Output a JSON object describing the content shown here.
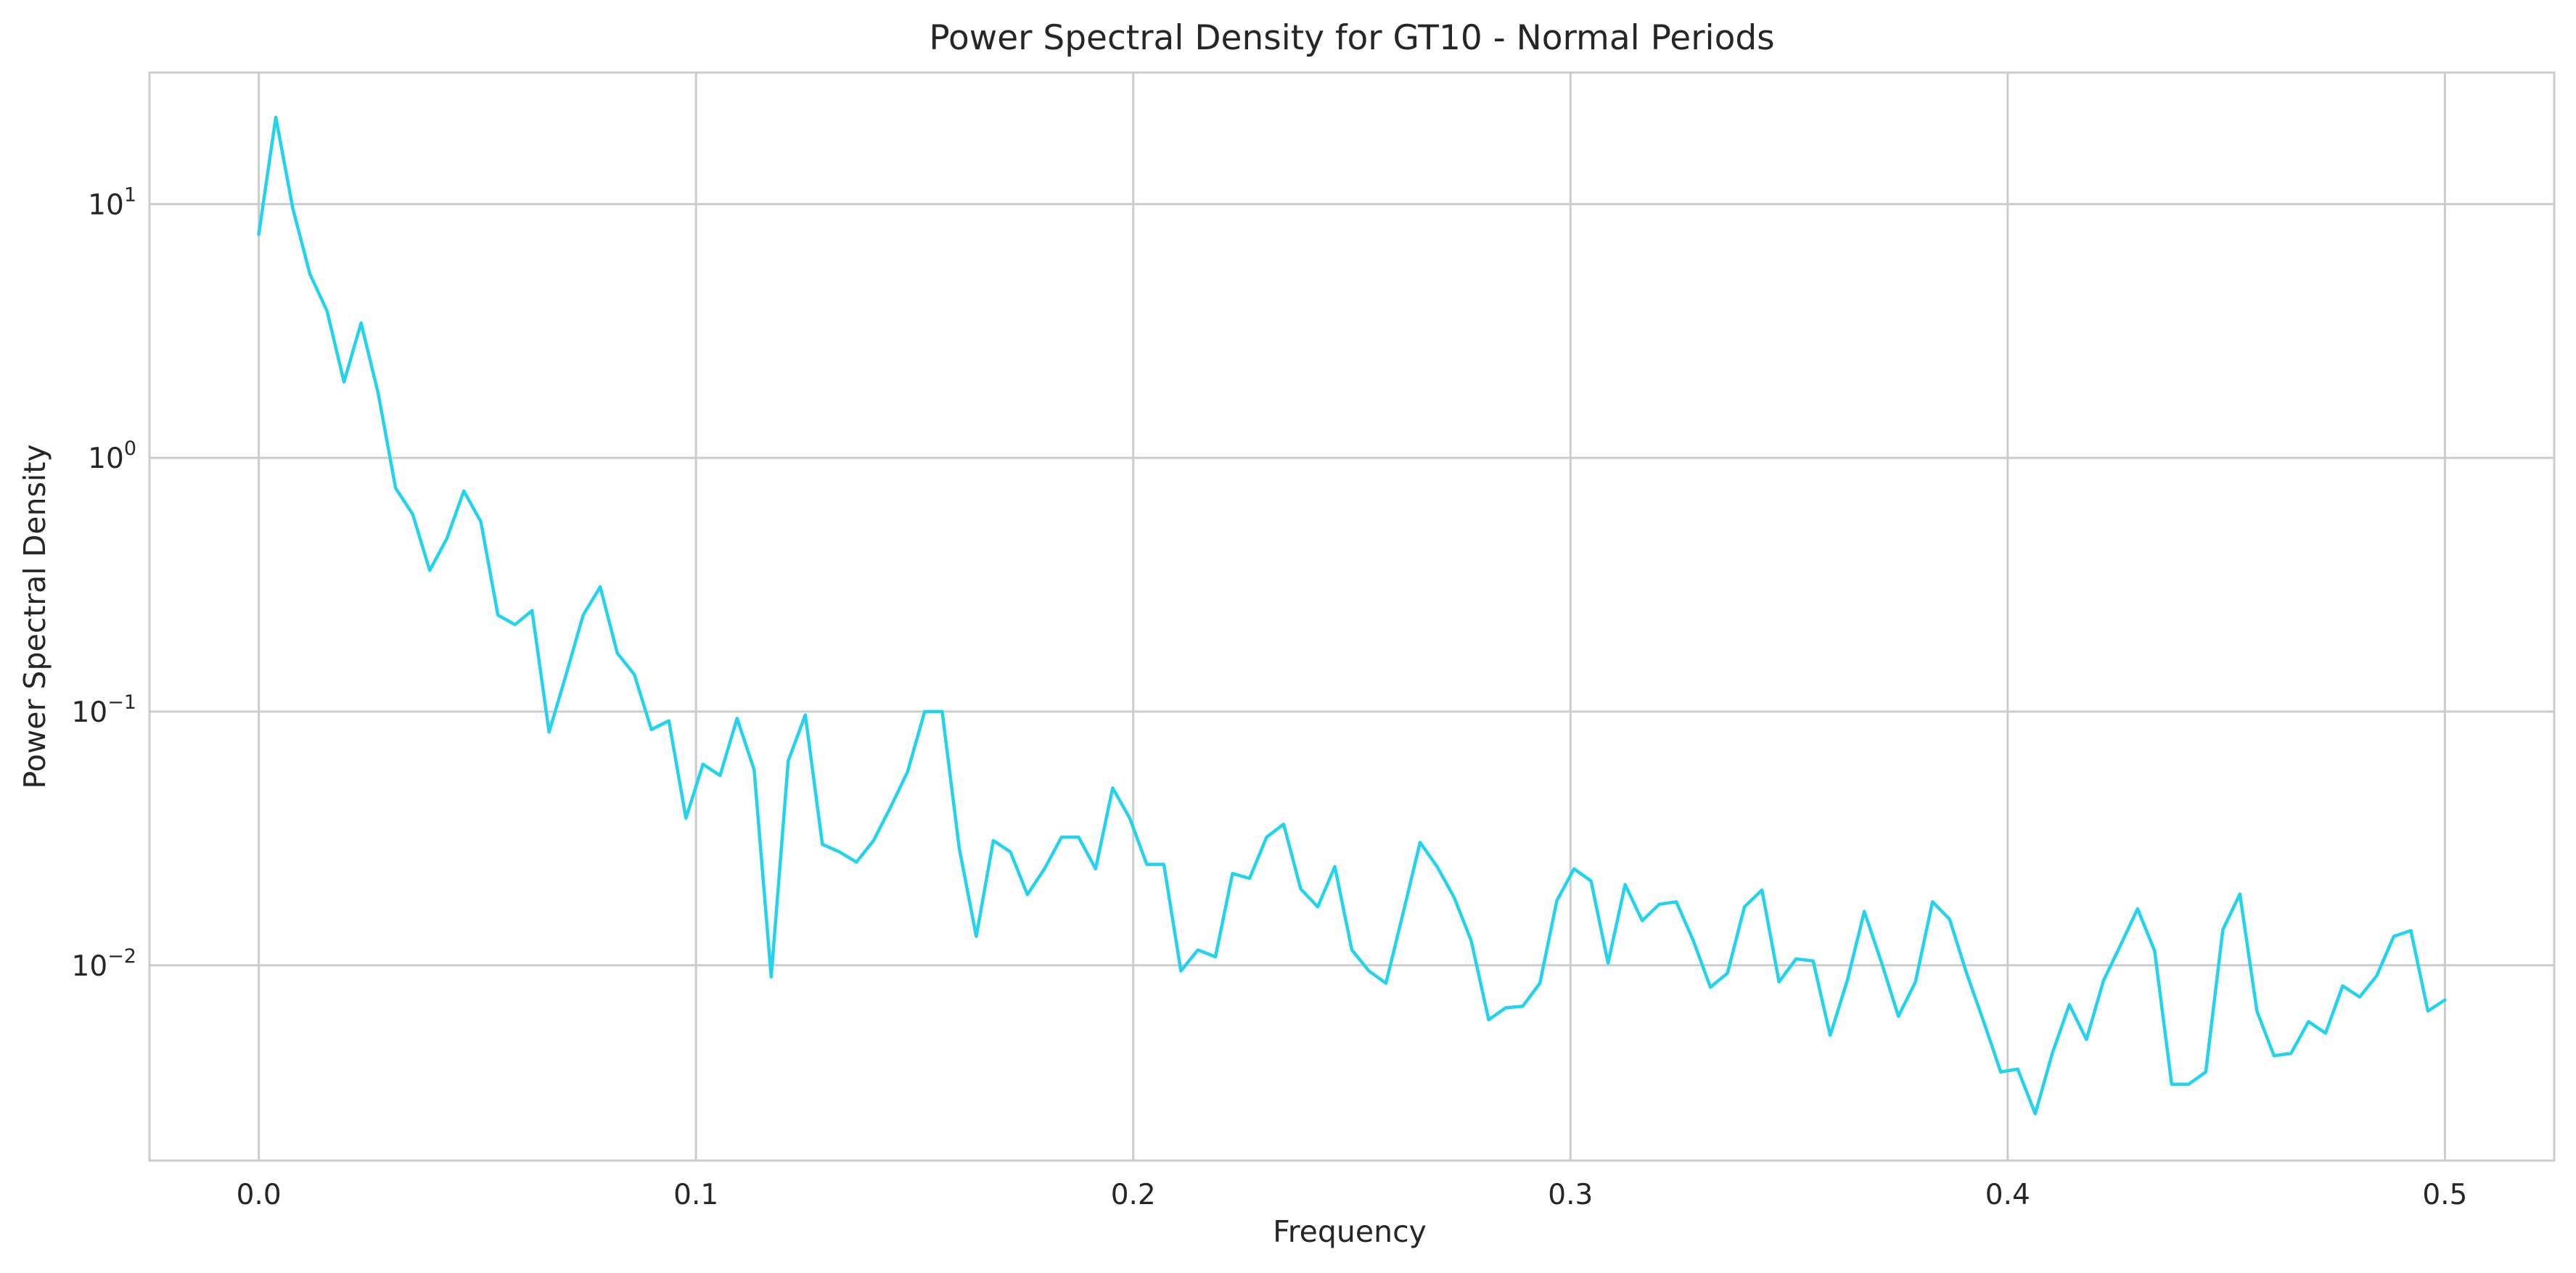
{
  "chart_data": {
    "type": "line",
    "title": "Power Spectral Density for GT10 - Normal Periods",
    "xlabel": "Frequency",
    "ylabel": "Power Spectral Density",
    "xlim": [
      -0.025,
      0.525
    ],
    "ylim": [
      0.0017,
      33
    ],
    "yscale": "log",
    "grid": true,
    "legend": "none",
    "line_color": "#22d3ee",
    "x_ticks": [
      {
        "value": 0.0,
        "label": "0.0"
      },
      {
        "value": 0.1,
        "label": "0.1"
      },
      {
        "value": 0.2,
        "label": "0.2"
      },
      {
        "value": 0.3,
        "label": "0.3"
      },
      {
        "value": 0.4,
        "label": "0.4"
      },
      {
        "value": 0.5,
        "label": "0.5"
      }
    ],
    "y_ticks": [
      {
        "value": 0.01,
        "base": "10",
        "exp": "−2"
      },
      {
        "value": 0.1,
        "base": "10",
        "exp": "−1"
      },
      {
        "value": 1,
        "base": "10",
        "exp": "0"
      },
      {
        "value": 10,
        "base": "10",
        "exp": "1"
      }
    ],
    "series": [
      {
        "x": [
          0.0,
          0.0039,
          0.0078,
          0.0117,
          0.0156,
          0.0195,
          0.0234,
          0.0273,
          0.0313,
          0.0352,
          0.0391,
          0.043,
          0.0469,
          0.0508,
          0.0547,
          0.0586,
          0.0625,
          0.0664,
          0.0703,
          0.0742,
          0.0781,
          0.082,
          0.0859,
          0.0898,
          0.0938,
          0.0977,
          0.1016,
          0.1055,
          0.1094,
          0.1133,
          0.1172,
          0.1211,
          0.125,
          0.1289,
          0.1328,
          0.1367,
          0.1406,
          0.1445,
          0.1484,
          0.1523,
          0.1563,
          0.1602,
          0.1641,
          0.168,
          0.1719,
          0.1758,
          0.1797,
          0.1836,
          0.1875,
          0.1914,
          0.1953,
          0.1992,
          0.2031,
          0.207,
          0.2109,
          0.2148,
          0.2188,
          0.2227,
          0.2266,
          0.2305,
          0.2344,
          0.2383,
          0.2422,
          0.2461,
          0.25,
          0.2539,
          0.2578,
          0.2617,
          0.2656,
          0.2695,
          0.2734,
          0.2773,
          0.2813,
          0.2852,
          0.2891,
          0.293,
          0.2969,
          0.3008,
          0.3047,
          0.3086,
          0.3125,
          0.3164,
          0.3203,
          0.3242,
          0.3281,
          0.332,
          0.3359,
          0.3398,
          0.3438,
          0.3477,
          0.3516,
          0.3555,
          0.3594,
          0.3633,
          0.3672,
          0.3711,
          0.375,
          0.3789,
          0.3828,
          0.3867,
          0.3906,
          0.3945,
          0.3984,
          0.4023,
          0.4063,
          0.4102,
          0.4141,
          0.418,
          0.4219,
          0.4258,
          0.4297,
          0.4336,
          0.4375,
          0.4414,
          0.4453,
          0.4492,
          0.4531,
          0.457,
          0.4609,
          0.4648,
          0.4688,
          0.4727,
          0.4766,
          0.4805,
          0.4844,
          0.4883,
          0.4922,
          0.4961,
          0.5
        ],
        "values": [
          7.6,
          22.0,
          9.6,
          5.3,
          3.8,
          1.99,
          3.4,
          1.8,
          0.76,
          0.6,
          0.36,
          0.48,
          0.74,
          0.56,
          0.24,
          0.22,
          0.25,
          0.083,
          0.14,
          0.24,
          0.31,
          0.17,
          0.14,
          0.085,
          0.092,
          0.038,
          0.062,
          0.056,
          0.094,
          0.059,
          0.009,
          0.064,
          0.097,
          0.03,
          0.028,
          0.0255,
          0.031,
          0.042,
          0.058,
          0.1,
          0.1,
          0.029,
          0.013,
          0.031,
          0.028,
          0.019,
          0.024,
          0.032,
          0.032,
          0.024,
          0.05,
          0.038,
          0.025,
          0.025,
          0.0095,
          0.0115,
          0.0108,
          0.023,
          0.022,
          0.032,
          0.036,
          0.02,
          0.017,
          0.0245,
          0.0115,
          0.0095,
          0.0085,
          0.016,
          0.0305,
          0.0245,
          0.0185,
          0.0125,
          0.0061,
          0.0068,
          0.0069,
          0.0085,
          0.018,
          0.024,
          0.0215,
          0.0102,
          0.0208,
          0.015,
          0.0174,
          0.0178,
          0.0125,
          0.0082,
          0.0093,
          0.017,
          0.0198,
          0.0086,
          0.0106,
          0.0104,
          0.0053,
          0.0087,
          0.0163,
          0.0103,
          0.0063,
          0.0086,
          0.0178,
          0.0152,
          0.0093,
          0.006,
          0.0038,
          0.0039,
          0.0026,
          0.0045,
          0.007,
          0.0051,
          0.0087,
          0.012,
          0.0167,
          0.0114,
          0.0034,
          0.0034,
          0.0038,
          0.0138,
          0.0191,
          0.0066,
          0.0044,
          0.0045,
          0.006,
          0.0054,
          0.0083,
          0.0075,
          0.0091,
          0.013,
          0.0137,
          0.0066,
          0.0073
        ]
      }
    ]
  }
}
